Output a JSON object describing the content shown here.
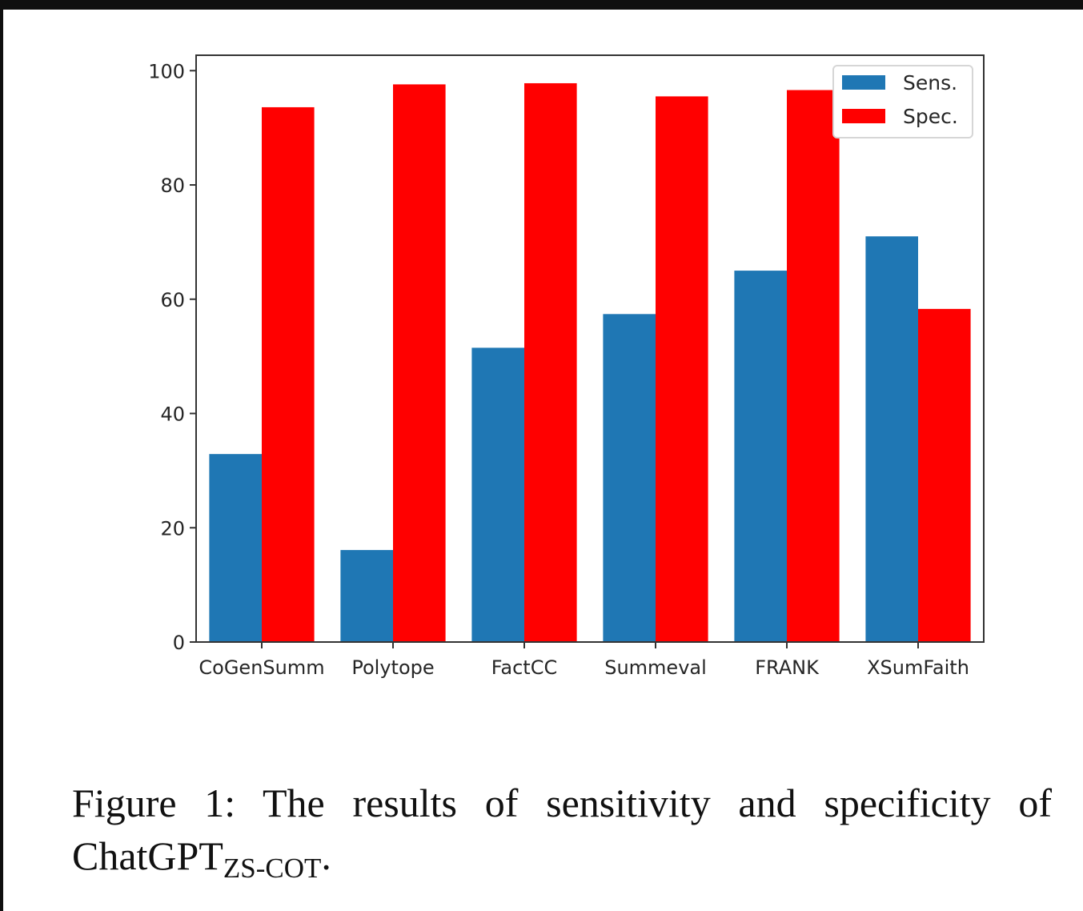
{
  "chart_data": {
    "type": "bar",
    "title": "",
    "xlabel": "",
    "ylabel": "",
    "categories": [
      "CoGenSumm",
      "Polytope",
      "FactCC",
      "Summeval",
      "FRANK",
      "XSumFaith"
    ],
    "series": [
      {
        "name": "Sens.",
        "color": "#1f77b4",
        "values": [
          32.9,
          16.1,
          51.5,
          57.4,
          65.0,
          71.0
        ]
      },
      {
        "name": "Spec.",
        "color": "#ff0000",
        "values": [
          93.6,
          97.6,
          97.8,
          95.5,
          96.6,
          58.3
        ]
      }
    ],
    "ylim": [
      0,
      102.7
    ],
    "yticks": [
      0,
      20,
      40,
      60,
      80,
      100
    ],
    "ytick_labels": [
      "0",
      "20",
      "40",
      "60",
      "80",
      "100"
    ],
    "grid": false,
    "legend_position": "top-right"
  },
  "caption": {
    "line1": "Figure 1:  The results of sensitivity and specificity of",
    "line2_main": "ChatGPT",
    "line2_sub": "ZS-COT",
    "line2_end": "."
  }
}
